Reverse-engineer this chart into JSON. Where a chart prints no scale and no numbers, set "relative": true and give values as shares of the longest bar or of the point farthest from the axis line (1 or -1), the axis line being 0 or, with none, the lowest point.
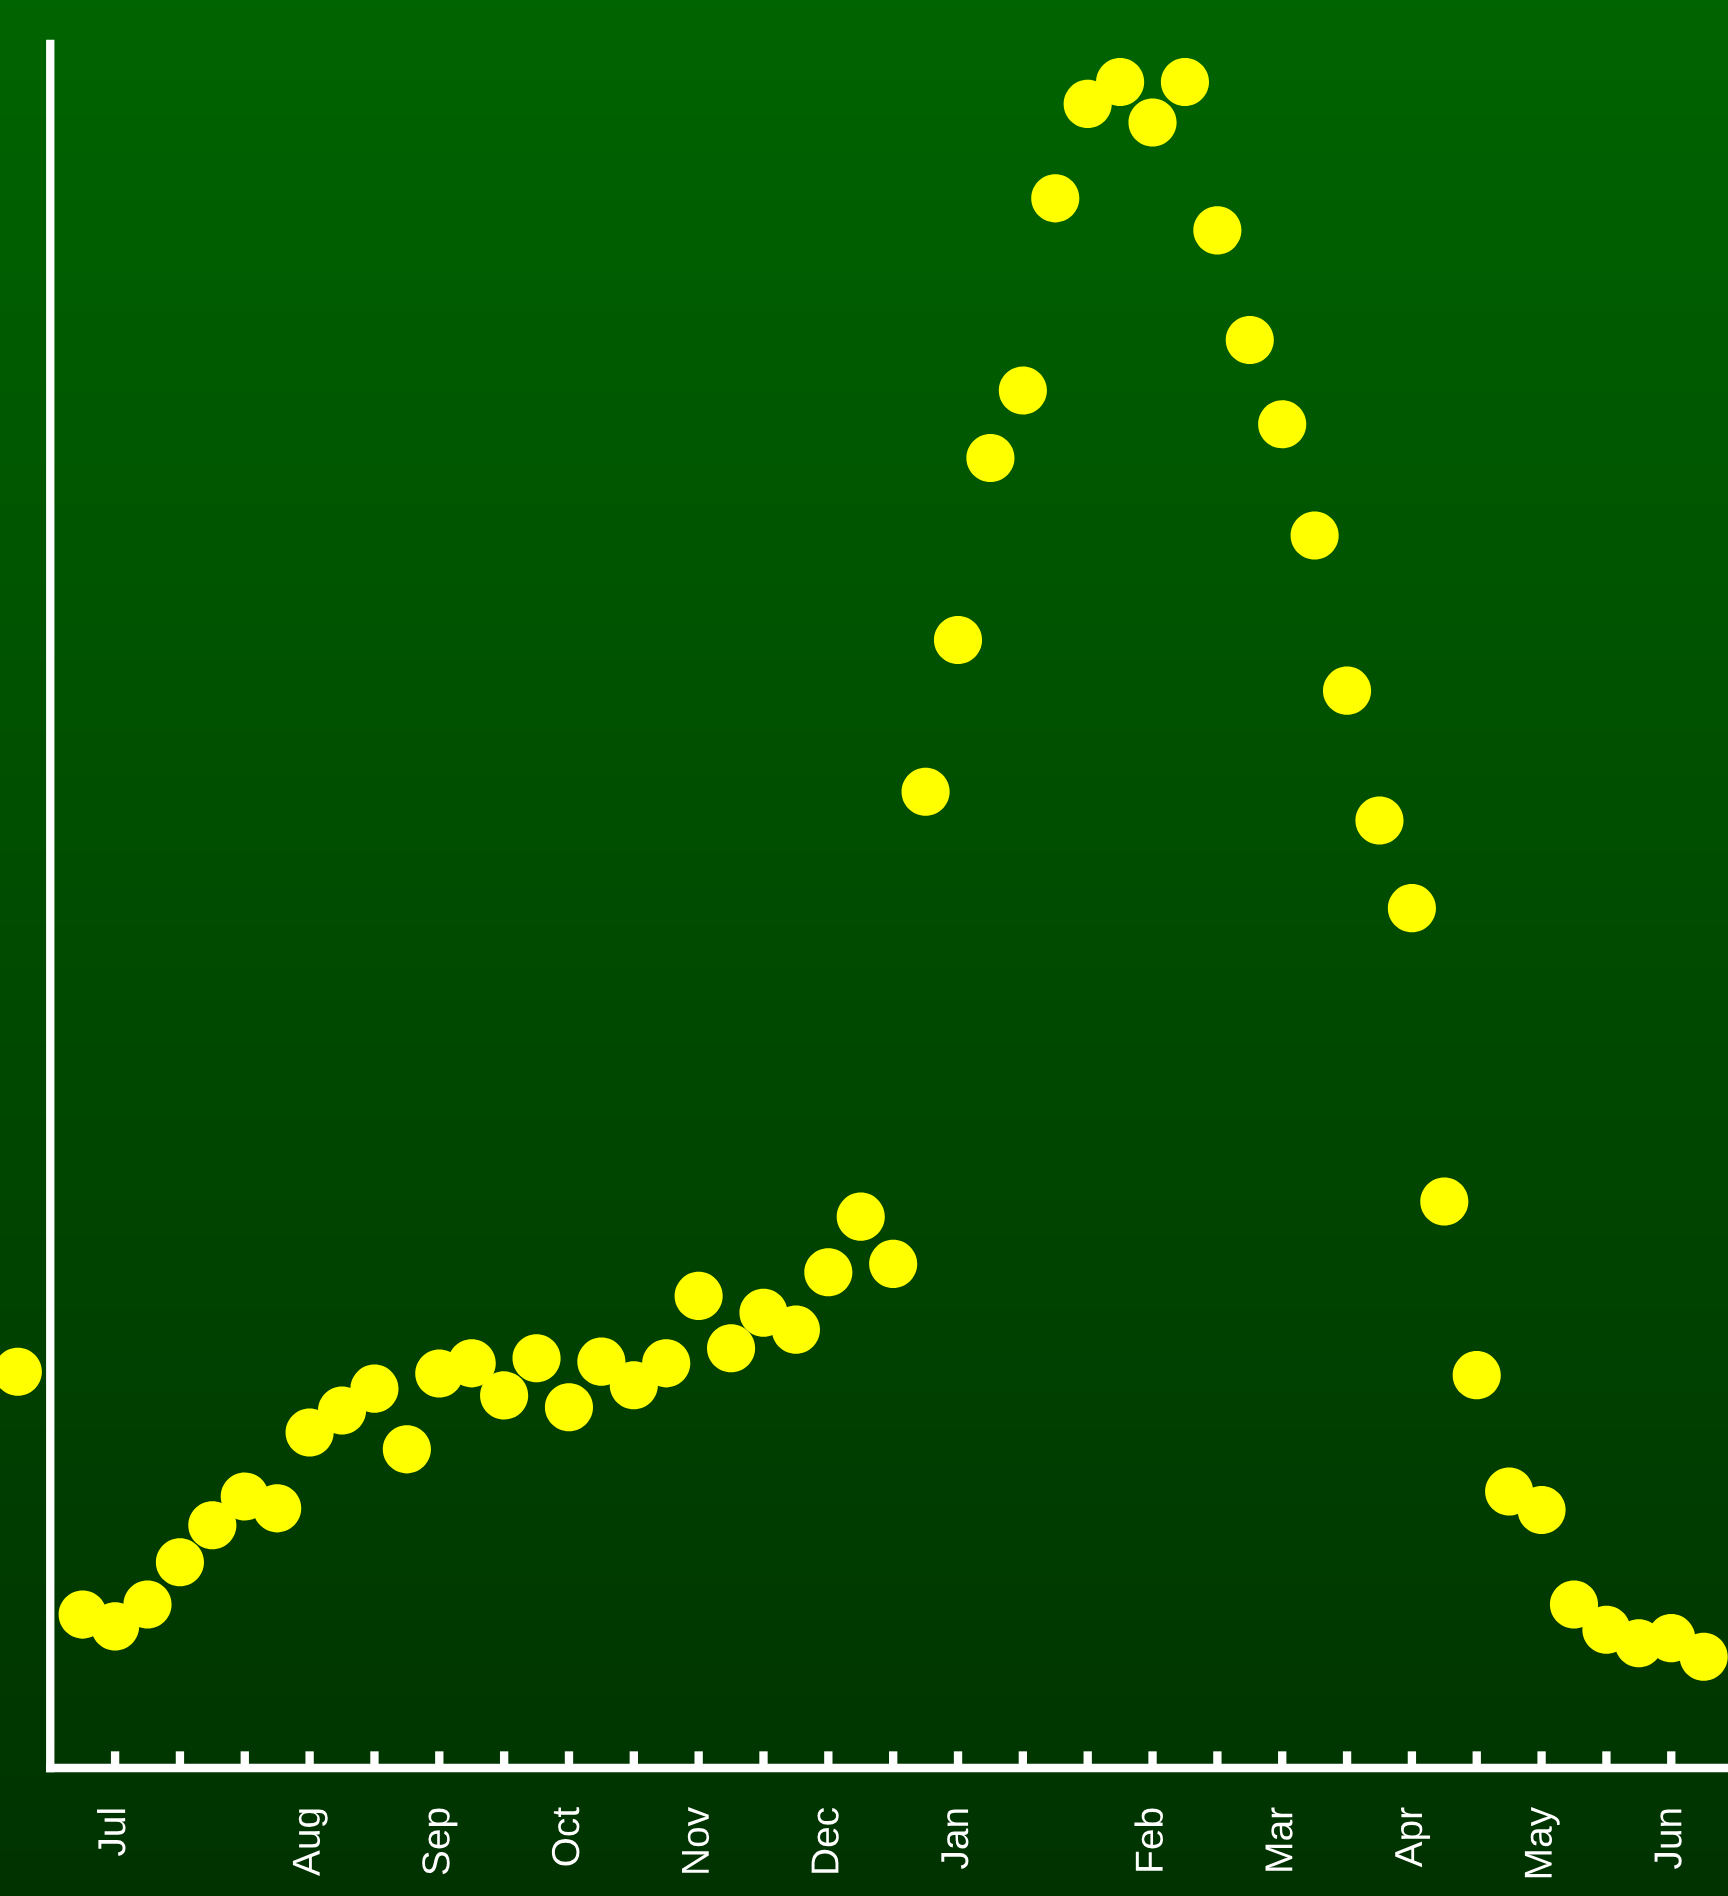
{
  "chart_data": {
    "type": "scatter",
    "relative": true,
    "marker": "circle",
    "tick_labels": "x",
    "categories": [
      null,
      null,
      null,
      "Jul",
      null,
      null,
      null,
      null,
      null,
      "Aug",
      null,
      null,
      null,
      "Sep",
      null,
      null,
      null,
      "Oct",
      null,
      null,
      null,
      "Nov",
      null,
      null,
      null,
      "Dec",
      null,
      null,
      null,
      "Jan",
      null,
      null,
      null,
      null,
      null,
      "Feb",
      null,
      null,
      null,
      "Mar",
      null,
      null,
      null,
      "Apr",
      null,
      null,
      null,
      "May",
      null,
      null,
      null,
      "Jun",
      null
    ],
    "series": [
      {
        "color": "#ffff00",
        "values": [
          0.235,
          null,
          0.091,
          0.084,
          0.097,
          0.122,
          0.144,
          0.161,
          0.154,
          0.199,
          0.212,
          0.225,
          0.189,
          0.234,
          0.24,
          0.221,
          0.243,
          0.214,
          0.241,
          0.227,
          0.24,
          0.28,
          0.249,
          0.27,
          0.26,
          0.294,
          0.327,
          0.299,
          0.579,
          0.669,
          0.777,
          0.817,
          0.931,
          0.987,
          1,
          0.976,
          1,
          0.912,
          0.847,
          0.797,
          0.731,
          0.639,
          0.562,
          0.51,
          0.336,
          0.233,
          0.164,
          0.153,
          0.097,
          0.082,
          0.074,
          0.077,
          0.066
        ]
      }
    ]
  }
}
